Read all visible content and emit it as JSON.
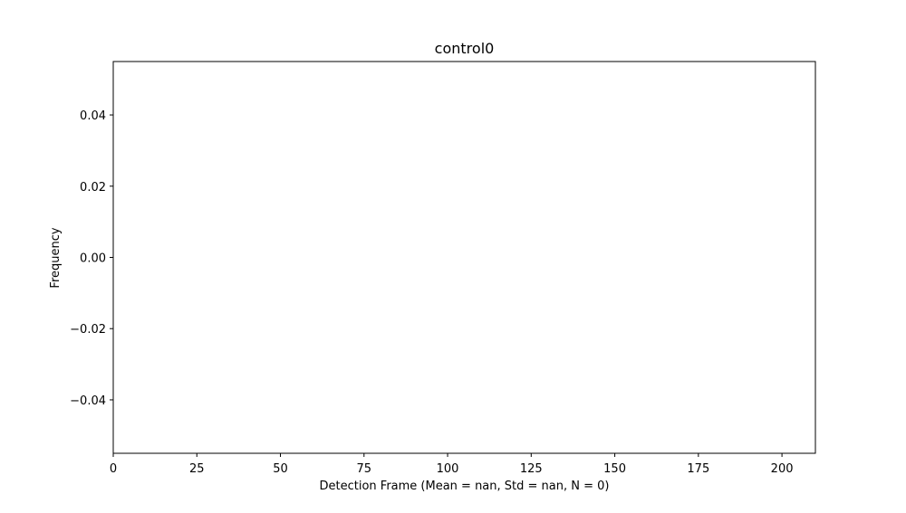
{
  "chart_data": {
    "type": "bar",
    "title": "control0",
    "xlabel": "Detection Frame (Mean = nan, Std = nan, N = 0)",
    "ylabel": "Frequency",
    "xlim": [
      0,
      210
    ],
    "ylim": [
      -0.055,
      0.055
    ],
    "x_ticks": [
      0,
      25,
      50,
      75,
      100,
      125,
      150,
      175,
      200
    ],
    "x_tick_labels": [
      "0",
      "25",
      "50",
      "75",
      "100",
      "125",
      "150",
      "175",
      "200"
    ],
    "y_ticks": [
      -0.04,
      -0.02,
      0.0,
      0.02,
      0.04
    ],
    "y_tick_labels": [
      "−0.04",
      "−0.02",
      "0.00",
      "0.02",
      "0.04"
    ],
    "series": [
      {
        "values": []
      }
    ],
    "grid": false,
    "legend": "none"
  }
}
